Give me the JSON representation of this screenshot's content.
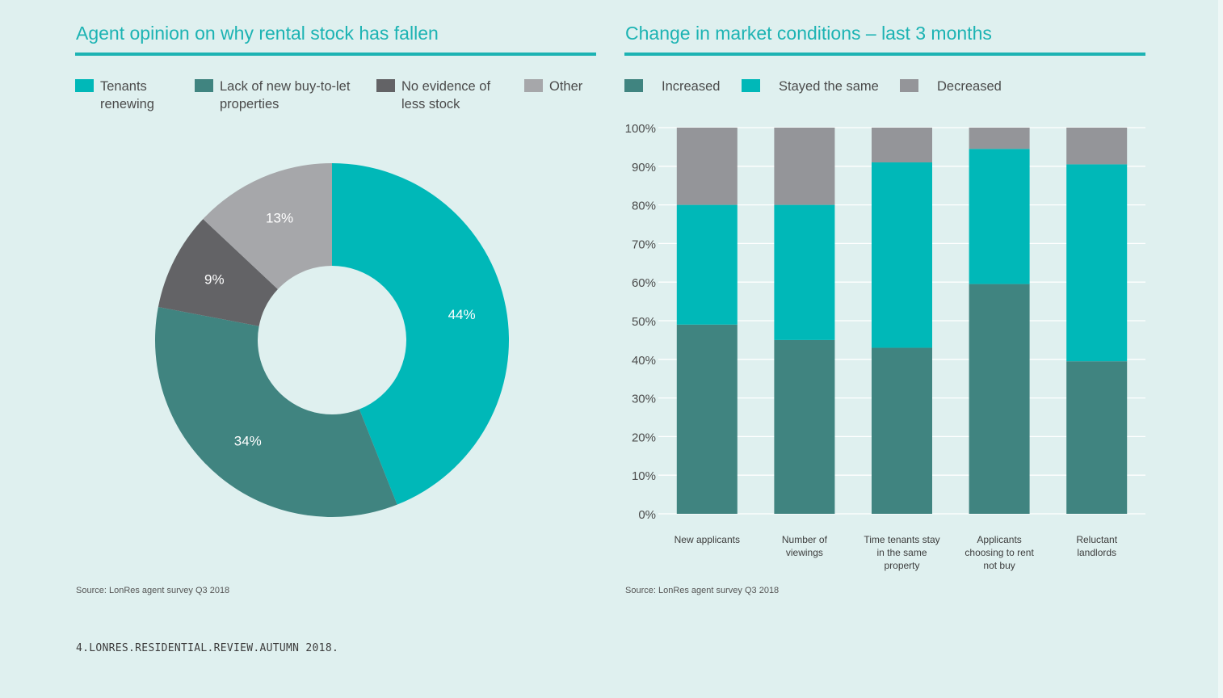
{
  "colors": {
    "background": "#dff0ef",
    "accent": "#1cb3b3",
    "teal_dark": "#408480",
    "teal_bright": "#00b8b8",
    "gray_dark": "#636366",
    "gray_light": "#a6a7aa",
    "gray_mid": "#949599"
  },
  "left_panel": {
    "title": "Agent opinion on why rental stock has fallen",
    "legend": [
      {
        "lines": [
          "Tenants",
          "renewing"
        ],
        "color": "#00b8b8"
      },
      {
        "lines": [
          "Lack of new buy-to-let",
          "properties"
        ],
        "color": "#408480"
      },
      {
        "lines": [
          "No evidence of",
          "less stock"
        ],
        "color": "#636366"
      },
      {
        "lines": [
          "Other"
        ],
        "color": "#a6a7aa"
      }
    ],
    "source": "Source: LonRes agent survey Q3 2018"
  },
  "right_panel": {
    "title": "Change in market conditions – last 3 months",
    "legend": [
      {
        "lines": [
          "Increased"
        ],
        "color": "#408480"
      },
      {
        "lines": [
          "Stayed the same"
        ],
        "color": "#00b8b8"
      },
      {
        "lines": [
          "Decreased"
        ],
        "color": "#949599"
      }
    ],
    "source": "Source: LonRes agent survey Q3 2018"
  },
  "footer": "4.LONRES.RESIDENTIAL.REVIEW.AUTUMN 2018.",
  "chart_data": [
    {
      "type": "pie",
      "variant": "donut",
      "title": "Agent opinion on why rental stock has fallen",
      "start": "top, clockwise",
      "labels": [
        "Tenants renewing",
        "Lack of new buy-to-let properties",
        "No evidence of less stock",
        "Other"
      ],
      "values": [
        44,
        34,
        9,
        13
      ],
      "value_labels": [
        "44%",
        "34%",
        "9%",
        "13%"
      ],
      "colors": [
        "#00b8b8",
        "#408480",
        "#636366",
        "#a6a7aa"
      ],
      "legend_position": "top"
    },
    {
      "type": "bar",
      "variant": "stacked-100",
      "title": "Change in market conditions – last 3 months",
      "categories": [
        [
          "New applicants"
        ],
        [
          "Number of",
          "viewings"
        ],
        [
          "Time tenants stay",
          "in the same",
          "property"
        ],
        [
          "Applicants",
          "choosing to rent",
          "not buy"
        ],
        [
          "Reluctant",
          "landlords"
        ]
      ],
      "series": [
        {
          "name": "Increased",
          "color": "#408480",
          "values": [
            49,
            45,
            43,
            59.5,
            39.5
          ]
        },
        {
          "name": "Stayed the same",
          "color": "#00b8b8",
          "values": [
            31,
            35,
            48,
            35,
            51
          ]
        },
        {
          "name": "Decreased",
          "color": "#949599",
          "values": [
            20.5,
            21,
            9.5,
            6.5,
            10.5
          ]
        }
      ],
      "ylim": [
        0,
        100
      ],
      "yticks": [
        "0%",
        "10%",
        "20%",
        "30%",
        "40%",
        "50%",
        "60%",
        "70%",
        "80%",
        "90%",
        "100%"
      ],
      "grid": true,
      "legend_position": "top"
    }
  ]
}
